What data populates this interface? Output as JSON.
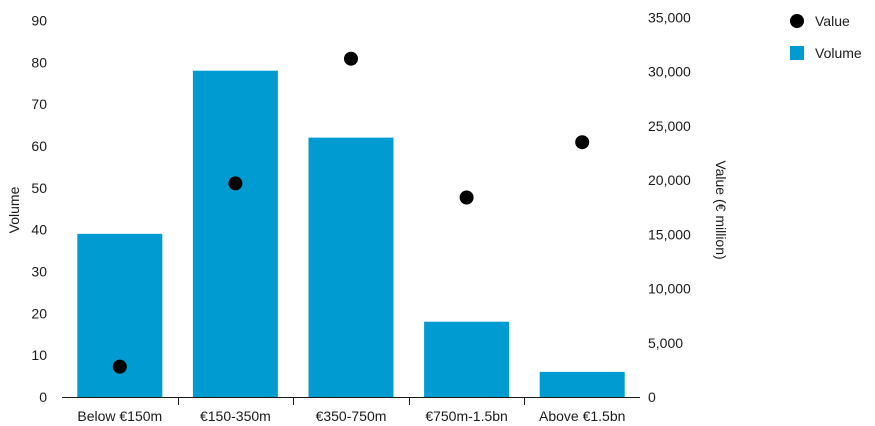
{
  "chart_data": {
    "type": "bar",
    "categories": [
      "Below €150m",
      "€150-350m",
      "€350-750m",
      "€750m-1.5bn",
      "Above €1.5bn"
    ],
    "series": [
      {
        "name": "Volume",
        "type": "bar",
        "axis": "left",
        "color": "#009bd0",
        "values": [
          39,
          78,
          62,
          18,
          6
        ]
      },
      {
        "name": "Value",
        "type": "scatter",
        "axis": "right",
        "color": "#000000",
        "values": [
          2800,
          19700,
          31200,
          18400,
          23500
        ]
      }
    ],
    "ylabel": "Volume",
    "y2label": "Value (€ million)",
    "ylim": [
      0,
      90
    ],
    "y2lim": [
      0,
      35000
    ],
    "yticks": [
      "0",
      "10",
      "20",
      "30",
      "40",
      "50",
      "60",
      "70",
      "80",
      "90"
    ],
    "y2ticks": [
      "0",
      "5,000",
      "10,000",
      "15,000",
      "20,000",
      "25,000",
      "30,000",
      "35,000"
    ],
    "legend": [
      {
        "label": "Value",
        "marker": "circle",
        "color": "#000000"
      },
      {
        "label": "Volume",
        "marker": "square",
        "color": "#009bd0"
      }
    ],
    "legend_position": "top-right",
    "grid": false
  }
}
